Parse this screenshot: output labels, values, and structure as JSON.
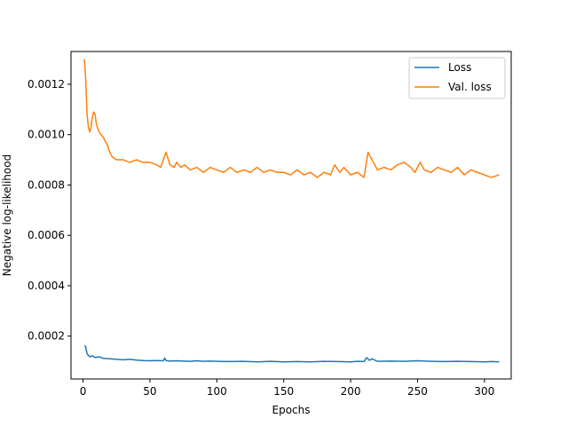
{
  "chart_data": {
    "type": "line",
    "title": "",
    "xlabel": "Epochs",
    "ylabel": "Negative log-likelihood",
    "xlim": [
      -9,
      320
    ],
    "ylim": [
      3e-05,
      0.00133
    ],
    "xticks": [
      0,
      50,
      100,
      150,
      200,
      250,
      300
    ],
    "xtick_labels": [
      "0",
      "50",
      "100",
      "150",
      "200",
      "250",
      "300"
    ],
    "yticks": [
      0.0002,
      0.0004,
      0.0006,
      0.0008,
      0.001,
      0.0012
    ],
    "ytick_labels": [
      "0.0002",
      "0.0004",
      "0.0006",
      "0.0008",
      "0.0010",
      "0.0012"
    ],
    "grid": false,
    "legend_position": "upper right",
    "series": [
      {
        "name": "Loss",
        "color": "#1f77b4",
        "x": [
          1,
          2,
          3,
          5,
          7,
          9,
          12,
          15,
          20,
          25,
          30,
          35,
          40,
          45,
          50,
          55,
          60,
          61,
          62,
          65,
          70,
          75,
          80,
          85,
          90,
          95,
          100,
          110,
          120,
          130,
          140,
          150,
          160,
          170,
          180,
          190,
          200,
          205,
          210,
          212,
          214,
          216,
          220,
          230,
          240,
          250,
          260,
          270,
          280,
          290,
          300,
          305,
          311
        ],
        "y": [
          0.000162,
          0.000158,
          0.00013,
          0.000118,
          0.000122,
          0.000115,
          0.000118,
          0.000112,
          0.00011,
          0.000108,
          0.000106,
          0.000108,
          0.000105,
          0.000103,
          0.000102,
          0.000103,
          0.000102,
          0.000113,
          0.000103,
          0.000101,
          0.000102,
          0.000101,
          0.0001,
          0.000102,
          0.0001,
          0.000101,
          0.0001,
          9.9e-05,
          0.0001,
          9.8e-05,
          0.0001,
          9.8e-05,
          9.9e-05,
          9.8e-05,
          0.0001,
          9.9e-05,
          9.8e-05,
          0.0001,
          9.9e-05,
          0.000115,
          0.000104,
          0.00011,
          0.0001,
          0.000101,
          0.0001,
          0.000102,
          0.0001,
          9.9e-05,
          0.0001,
          9.9e-05,
          9.8e-05,
          9.9e-05,
          9.8e-05
        ]
      },
      {
        "name": "Val. loss",
        "color": "#ff7f0e",
        "x": [
          1,
          2,
          3,
          4,
          5,
          6,
          7,
          8,
          9,
          10,
          12,
          15,
          18,
          20,
          22,
          25,
          30,
          35,
          40,
          45,
          50,
          55,
          58,
          62,
          65,
          68,
          70,
          73,
          76,
          80,
          85,
          90,
          95,
          100,
          105,
          110,
          115,
          120,
          125,
          130,
          135,
          140,
          145,
          150,
          155,
          160,
          165,
          170,
          175,
          180,
          185,
          188,
          192,
          195,
          200,
          205,
          210,
          213,
          216,
          220,
          225,
          230,
          235,
          240,
          245,
          248,
          252,
          255,
          260,
          265,
          270,
          275,
          280,
          285,
          290,
          295,
          300,
          305,
          311
        ],
        "y": [
          0.0013,
          0.00122,
          0.00108,
          0.00103,
          0.00101,
          0.00103,
          0.00107,
          0.00109,
          0.00108,
          0.00104,
          0.00101,
          0.00099,
          0.00096,
          0.00093,
          0.00091,
          0.0009,
          0.0009,
          0.00089,
          0.0009,
          0.00089,
          0.00089,
          0.00088,
          0.00087,
          0.00093,
          0.00088,
          0.00087,
          0.00089,
          0.00087,
          0.00088,
          0.00086,
          0.00087,
          0.00085,
          0.00087,
          0.00086,
          0.00085,
          0.00087,
          0.00085,
          0.00086,
          0.00085,
          0.00087,
          0.00085,
          0.00086,
          0.00085,
          0.00085,
          0.00084,
          0.00086,
          0.00084,
          0.00085,
          0.00083,
          0.00085,
          0.00084,
          0.00088,
          0.00085,
          0.00087,
          0.00084,
          0.00085,
          0.00083,
          0.00093,
          0.0009,
          0.00086,
          0.00087,
          0.00086,
          0.00088,
          0.00089,
          0.00087,
          0.00085,
          0.00089,
          0.00086,
          0.00085,
          0.00087,
          0.00086,
          0.00085,
          0.00087,
          0.00084,
          0.00086,
          0.00085,
          0.00084,
          0.00083,
          0.00084
        ]
      }
    ]
  }
}
